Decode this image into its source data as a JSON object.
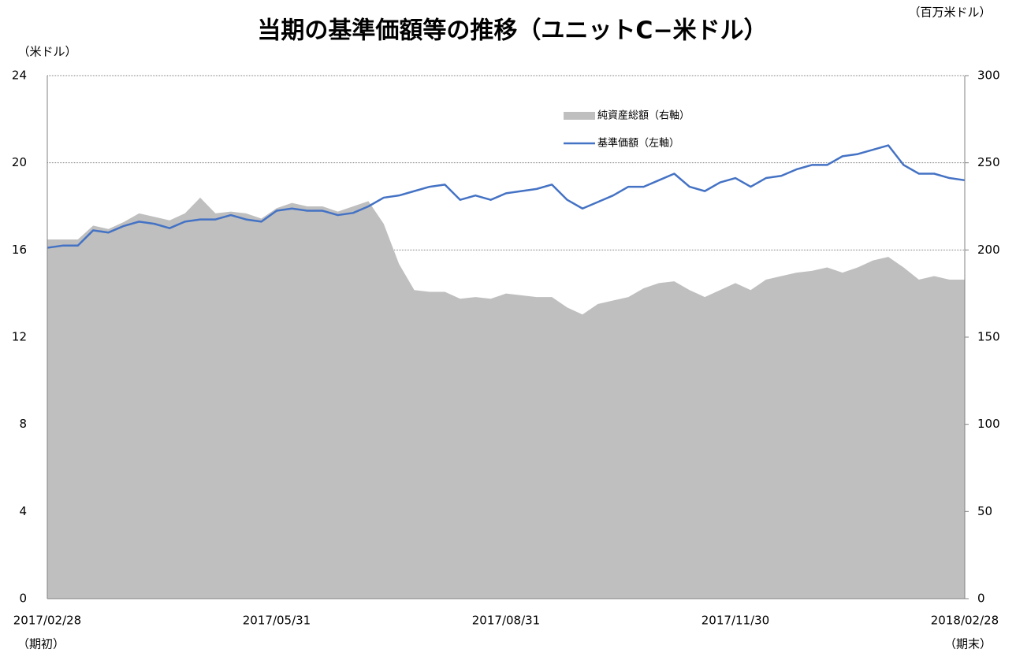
{
  "chart_data": {
    "type": "line",
    "title": "当期の基準価額等の推移（ユニットC−米ドル）",
    "y_unit_label": "（米ドル）",
    "y2_unit_label": "（百万米ドル）",
    "annotations": [
      "（期初）",
      "（期末）"
    ],
    "categories": [
      "2017/02/28",
      null,
      null,
      null,
      null,
      null,
      null,
      null,
      null,
      null,
      null,
      null,
      null,
      null,
      null,
      "2017/05/31",
      null,
      null,
      null,
      null,
      null,
      null,
      null,
      null,
      null,
      null,
      null,
      null,
      null,
      null,
      "2017/08/31",
      null,
      null,
      null,
      null,
      null,
      null,
      null,
      null,
      null,
      null,
      null,
      null,
      null,
      null,
      "2017/11/30",
      null,
      null,
      null,
      null,
      null,
      null,
      null,
      null,
      null,
      null,
      null,
      null,
      null,
      null,
      "2018/02/28"
    ],
    "ylim": [
      0,
      24
    ],
    "yticks": [
      0,
      4,
      8,
      12,
      16,
      20,
      24
    ],
    "y2lim": [
      0,
      300
    ],
    "y2ticks": [
      0,
      50,
      100,
      150,
      200,
      250,
      300
    ],
    "grid": true,
    "series": [
      {
        "name": "純資産総額（右軸）",
        "type": "area",
        "axis": "y2",
        "color": "#bfbfbf",
        "values": [
          206,
          206,
          206,
          214,
          212,
          216,
          221,
          219,
          217,
          221,
          230,
          221,
          222,
          221,
          218,
          224,
          227,
          225,
          225,
          222,
          225,
          228,
          215,
          192,
          177,
          176,
          176,
          172,
          173,
          172,
          175,
          174,
          173,
          173,
          167,
          163,
          169,
          171,
          173,
          178,
          181,
          182,
          177,
          173,
          177,
          181,
          177,
          183,
          185,
          187,
          188,
          190,
          187,
          190,
          194,
          196,
          190,
          183,
          185,
          183,
          183
        ]
      },
      {
        "name": "基準価額（左軸）",
        "type": "line",
        "axis": "y",
        "color": "#4472c4",
        "values": [
          16.1,
          16.2,
          16.2,
          16.9,
          16.8,
          17.1,
          17.3,
          17.2,
          17.0,
          17.3,
          17.4,
          17.4,
          17.6,
          17.4,
          17.3,
          17.8,
          17.9,
          17.8,
          17.8,
          17.6,
          17.7,
          18.0,
          18.4,
          18.5,
          18.7,
          18.9,
          19.0,
          18.3,
          18.5,
          18.3,
          18.6,
          18.7,
          18.8,
          19.0,
          18.3,
          17.9,
          18.2,
          18.5,
          18.9,
          18.9,
          19.2,
          19.5,
          18.9,
          18.7,
          19.1,
          19.3,
          18.9,
          19.3,
          19.4,
          19.7,
          19.9,
          19.9,
          20.3,
          20.4,
          20.6,
          20.8,
          19.9,
          19.5,
          19.5,
          19.3,
          19.2
        ]
      }
    ]
  }
}
